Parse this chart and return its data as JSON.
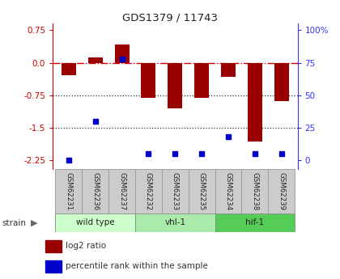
{
  "title": "GDS1379 / 11743",
  "samples": [
    "GSM62231",
    "GSM62236",
    "GSM62237",
    "GSM62232",
    "GSM62233",
    "GSM62235",
    "GSM62234",
    "GSM62238",
    "GSM62239"
  ],
  "log2_ratio": [
    -0.28,
    0.12,
    0.42,
    -0.82,
    -1.05,
    -0.82,
    -0.32,
    -1.82,
    -0.88
  ],
  "percentile_rank": [
    0,
    30,
    78,
    5,
    5,
    5,
    18,
    5,
    5
  ],
  "ylim": [
    -2.45,
    0.9
  ],
  "yticks_left": [
    0.75,
    0.0,
    -0.75,
    -1.5,
    -2.25
  ],
  "right_axis_values": [
    100,
    75,
    50,
    25,
    0
  ],
  "groups": [
    {
      "label": "wild type",
      "start": 0,
      "end": 3,
      "color": "#ccffcc"
    },
    {
      "label": "vhl-1",
      "start": 3,
      "end": 6,
      "color": "#aaeaaa"
    },
    {
      "label": "hif-1",
      "start": 6,
      "end": 9,
      "color": "#55cc55"
    }
  ],
  "bar_color": "#990000",
  "dot_color": "#0000cc",
  "title_color": "#222222",
  "left_tick_color": "#cc0000",
  "right_tick_color": "#3333ff",
  "hline0_color": "#cc0000",
  "hline_dotted_color": "#333333",
  "sample_box_color": "#cccccc",
  "sample_box_edge": "#999999",
  "bg_figure": "#ffffff"
}
